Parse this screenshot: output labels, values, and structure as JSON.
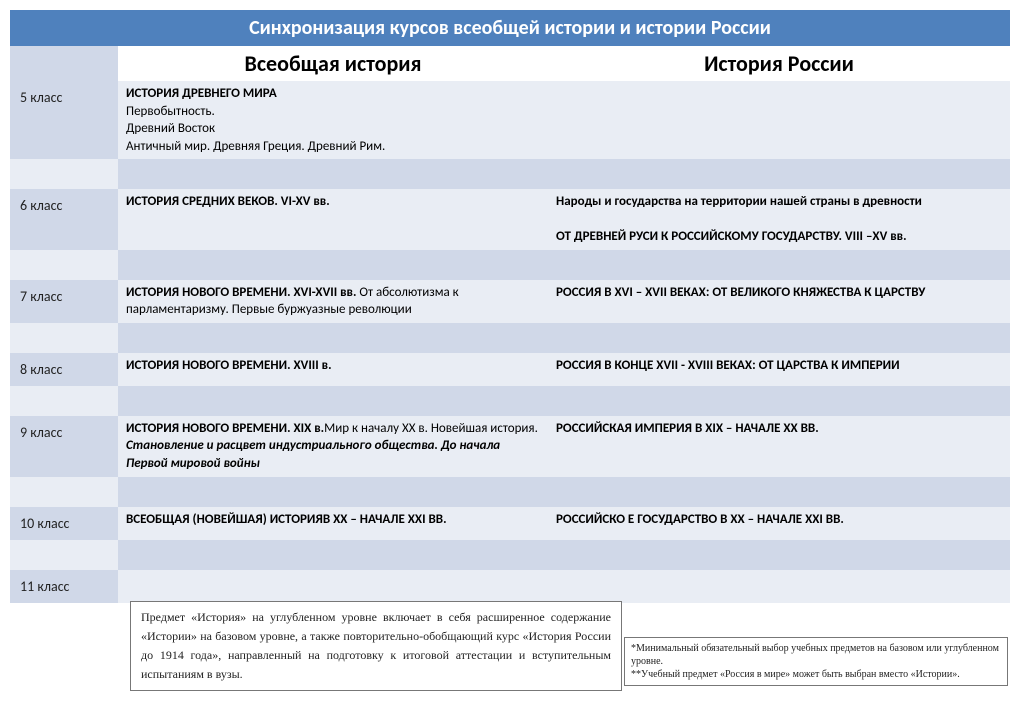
{
  "title": "Синхронизация курсов всеобщей истории и истории России",
  "columns": {
    "world": "Всеобщая история",
    "russia": "История России"
  },
  "rows": [
    {
      "grade": "5 класс",
      "world_bold": "ИСТОРИЯ ДРЕВНЕГО МИРА",
      "world_rest": "Первобытность.\nДревний Восток\nАнтичный мир. Древняя Греция. Древний Рим.",
      "russia": ""
    },
    {
      "grade": "6 класс",
      "world_bold": "ИСТОРИЯ СРЕДНИХ ВЕКОВ. VI-XV вв.",
      "world_rest": "",
      "russia": "Народы и государства на территории нашей страны в древности\n\nОТ ДРЕВНЕЙ РУСИ К РОССИЙСКОМУ ГОСУДАРСТВУ. VIII –XV вв."
    },
    {
      "grade": "7 класс",
      "world_bold": "ИСТОРИЯ НОВОГО ВРЕМЕНИ. XVI-XVII вв.",
      "world_rest": " От абсолютизма к парламентаризму. Первые буржуазные революции",
      "russia": "РОССИЯ В XVI – XVII ВЕКАХ: ОТ ВЕЛИКОГО КНЯЖЕСТВА К ЦАРСТВУ"
    },
    {
      "grade": "8 класс",
      "world_bold": "ИСТОРИЯ НОВОГО ВРЕМЕНИ. XVIII в.",
      "world_rest": "",
      "russia": "РОССИЯ В КОНЦЕ XVII - XVIII ВЕКАХ: ОТ ЦАРСТВА К ИМПЕРИИ"
    },
    {
      "grade": "9 класс",
      "world_bold": "ИСТОРИЯ НОВОГО ВРЕМЕНИ. XIX в.",
      "world_rest": "Мир к началу XX в. Новейшая история. ",
      "world_italic": "Становление и расцвет индустриального общества. До начала Первой мировой войны",
      "russia": "РОССИЙСКАЯ ИМПЕРИЯ В XIX – НАЧАЛЕ XX ВВ."
    },
    {
      "grade": "10 класс",
      "world_bold": "ВСЕОБЩАЯ (НОВЕЙШАЯ) ИСТОРИЯВ XX – НАЧАЛЕ XXI ВВ.",
      "world_rest": "",
      "russia": "РОССИЙСКО Е ГОСУДАРСТВО В XX – НАЧАЛЕ XXI ВВ."
    },
    {
      "grade": "11 класс",
      "world_bold": "",
      "world_rest": "",
      "russia": ""
    }
  ],
  "note": "Предмет «История» на углубленном уровне включает в себя расширенное содержание «Истории» на базовом уровне, а также повторительно-обобщающий курс «История России до 1914 года», направленный на подготовку к итоговой аттестации и вступительным испытаниям в вузы.",
  "footnote1": "*Минимальный обязательный выбор учебных предметов на базовом или углубленном уровне.",
  "footnote2": "**Учебный предмет «Россия в мире» может быть выбран вместо «Истории».",
  "colors": {
    "header_bg": "#4f81bd",
    "band_light": "#e9edf4",
    "band_dark": "#d0d8e8"
  }
}
